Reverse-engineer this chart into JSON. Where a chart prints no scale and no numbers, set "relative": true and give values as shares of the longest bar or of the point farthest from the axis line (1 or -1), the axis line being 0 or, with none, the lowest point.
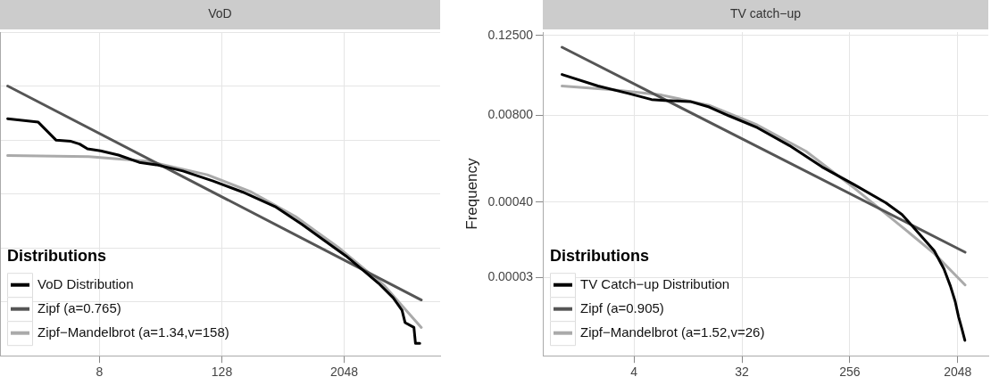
{
  "chart_data": [
    {
      "type": "line",
      "title": "VoD",
      "relative": true,
      "tick_labels": "x",
      "legend_title": "Distributions",
      "legend": "bottom left",
      "grid": true,
      "marker": "none",
      "line_style": "solid",
      "xlim": [
        0.84,
        18000
      ],
      "xticks": [
        8,
        128,
        2048
      ],
      "log": "x",
      "series": [
        {
          "name": "VoD Distribution",
          "color": "#000000",
          "x": [
            1,
            2,
            3,
            4.2,
            5.1,
            6.1,
            8.2,
            12.3,
            19.7,
            29,
            53,
            105,
            205,
            428,
            781,
            1330,
            2130,
            3190,
            4450,
            6210,
            7590,
            8130,
            9940,
            10300,
            11350
          ],
          "values": [
            0.879,
            0.866,
            0.799,
            0.795,
            0.785,
            0.767,
            0.76,
            0.744,
            0.717,
            0.708,
            0.685,
            0.648,
            0.607,
            0.553,
            0.488,
            0.425,
            0.37,
            0.315,
            0.269,
            0.215,
            0.169,
            0.123,
            0.105,
            0.046,
            0.046
          ]
        },
        {
          "name": "Zipf (a=0.765)",
          "color": "#555555",
          "x": [
            1,
            11750
          ],
          "values": [
            1.0,
            0.207
          ]
        },
        {
          "name": "Zipf−Mandelbrot (a=1.34,v=158)",
          "color": "#aaaaaa",
          "x": [
            1,
            6.3,
            24,
            92,
            250,
            680,
            1860,
            5080,
            11750
          ],
          "values": [
            0.742,
            0.738,
            0.721,
            0.671,
            0.607,
            0.516,
            0.397,
            0.26,
            0.105
          ]
        }
      ]
    },
    {
      "type": "line",
      "title": "TV catch−up",
      "ylabel": "Frequency",
      "legend_title": "Distributions",
      "legend": "bottom left",
      "grid": true,
      "marker": "none",
      "line_style": "solid",
      "xlim": [
        0.69,
        3690
      ],
      "xticks": [
        4,
        32,
        256,
        2048
      ],
      "log": "xy",
      "ylim": [
        2e-06,
        0.14
      ],
      "yticks": [
        {
          "value": 3e-05,
          "label": "0.00003"
        },
        {
          "value": 0.0004,
          "label": "0.00040"
        },
        {
          "value": 0.008,
          "label": "0.00800"
        },
        {
          "value": 0.125,
          "label": "0.12500"
        }
      ],
      "series": [
        {
          "name": "TV Catch−up Distribution",
          "color": "#000000",
          "x": [
            1,
            2,
            3.6,
            5.6,
            7.2,
            11.8,
            17,
            25,
            43,
            80,
            150,
            278,
            512,
            700,
            955,
            1300,
            1570,
            1780,
            1950,
            2080,
            2210,
            2350
          ],
          "values": [
            0.0324,
            0.0218,
            0.0169,
            0.0137,
            0.0133,
            0.0128,
            0.0106,
            0.0078,
            0.0052,
            0.0028,
            0.00134,
            0.00073,
            0.00039,
            0.00026,
            0.00014,
            7.5e-05,
            4e-05,
            2.2e-05,
            1.3e-05,
            7.7e-06,
            5.2e-06,
            3.4e-06
          ]
        },
        {
          "name": "Zipf (a=0.905)",
          "color": "#555555",
          "x": [
            1,
            2360
          ],
          "values": [
            0.083,
            7.1e-05
          ]
        },
        {
          "name": "Zipf−Mandelbrot (a=1.52,v=26)",
          "color": "#aaaaaa",
          "x": [
            1,
            2.68,
            6.8,
            17,
            43,
            110,
            278,
            700,
            1300,
            2360
          ],
          "values": [
            0.0218,
            0.0192,
            0.016,
            0.0112,
            0.0057,
            0.0023,
            0.00065,
            0.00017,
            6.8e-05,
            2.3e-05
          ]
        }
      ]
    }
  ]
}
